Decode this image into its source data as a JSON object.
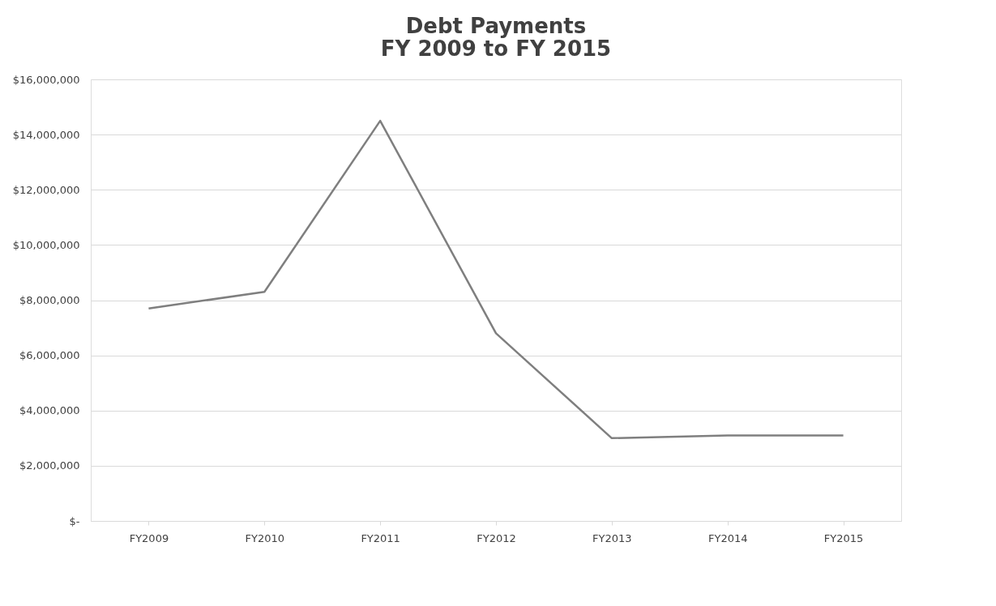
{
  "chart_data": {
    "type": "line",
    "title": [
      "Debt Payments",
      "FY 2009 to FY 2015"
    ],
    "categories": [
      "FY2009",
      "FY2010",
      "FY2011",
      "FY2012",
      "FY2013",
      "FY2014",
      "FY2015"
    ],
    "series": [
      {
        "color": "#7f7f7f",
        "values": [
          7700000,
          8300000,
          14500000,
          6800000,
          3000000,
          3100000,
          3100000
        ]
      }
    ],
    "ylim": [
      0,
      16000000
    ],
    "yticks": [
      {
        "value": 0,
        "label": "$-"
      },
      {
        "value": 2000000,
        "label": "$2,000,000"
      },
      {
        "value": 4000000,
        "label": "$4,000,000"
      },
      {
        "value": 6000000,
        "label": "$6,000,000"
      },
      {
        "value": 8000000,
        "label": "$8,000,000"
      },
      {
        "value": 10000000,
        "label": "$10,000,000"
      },
      {
        "value": 12000000,
        "label": "$12,000,000"
      },
      {
        "value": 14000000,
        "label": "$14,000,000"
      },
      {
        "value": 16000000,
        "label": "$16,000,000"
      }
    ],
    "grid": "y",
    "legend": false,
    "marker": "none",
    "line_style": "solid"
  }
}
